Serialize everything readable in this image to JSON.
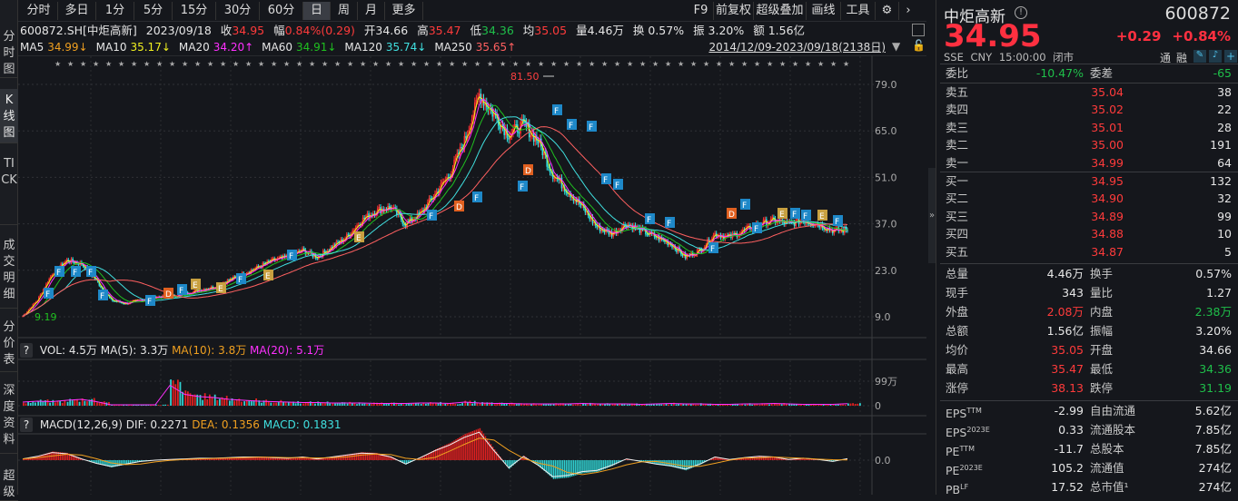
{
  "vertical_tabs": [
    {
      "label": "分时图"
    },
    {
      "label": "K线图",
      "active": true
    },
    {
      "label": "TICK"
    },
    {
      "label": "成交明细"
    },
    {
      "label": "分价表"
    },
    {
      "label": "深度资料"
    },
    {
      "label": "超级"
    }
  ],
  "toolbar": {
    "periods": [
      "分时",
      "多日",
      "1分",
      "5分",
      "15分",
      "30分",
      "60分",
      "日",
      "周",
      "月",
      "更多"
    ],
    "active": "日",
    "right": [
      "F9",
      "前复权",
      "超级叠加",
      "画线",
      "工具"
    ]
  },
  "info": {
    "code": "600872.SH[中炬高新]",
    "date": "2023/09/18",
    "close_label": "收",
    "close": "34.95",
    "chg_label": "幅",
    "chg": "0.84%(0.29)",
    "open_label": "开",
    "open": "34.66",
    "high_label": "高",
    "high": "35.47",
    "low_label": "低",
    "low": "34.36",
    "avg_label": "均",
    "avg": "35.05",
    "vol": "量4.46万",
    "turnover": "换 0.57%",
    "amp": "振 3.20%",
    "amount": "额 1.56亿"
  },
  "ma": [
    {
      "name": "MA5",
      "value": "34.99↓",
      "color": "#f0a020"
    },
    {
      "name": "MA10",
      "value": "35.17↓",
      "color": "#f0f020"
    },
    {
      "name": "MA20",
      "value": "34.20↑",
      "color": "#ff30ff"
    },
    {
      "name": "MA60",
      "value": "34.91↓",
      "color": "#20c020"
    },
    {
      "name": "MA120",
      "value": "35.74↓",
      "color": "#40e0e0"
    },
    {
      "name": "MA250",
      "value": "35.65↑",
      "color": "#ff6060"
    }
  ],
  "date_range": "2014/12/09-2023/09/18(2138日)",
  "volume_header": {
    "help": "?",
    "vol": "VOL: 4.5万",
    "ma5": "MA(5): 3.3万",
    "ma10": "MA(10): 3.8万",
    "ma20": "MA(20): 5.1万"
  },
  "macd_header": {
    "help": "?",
    "name": "MACD(12,26,9)",
    "dif": "DIF: 0.2271",
    "dea": "DEA: 0.1356",
    "macd": "MACD: 0.1831"
  },
  "chart_data": [
    {
      "type": "candlestick",
      "x_range": [
        "2014/12/09",
        "2023/09/18"
      ],
      "y_ticks": [
        "79.0",
        "65.0",
        "51.0",
        "37.0",
        "23.0",
        "9.0"
      ],
      "ylim": [
        4,
        88
      ],
      "annotations": [
        "81.50",
        "9.19"
      ],
      "close": [
        9.19,
        14,
        22,
        26,
        25,
        20,
        14,
        13,
        14,
        15,
        15,
        16,
        17,
        18,
        20,
        22,
        24,
        26,
        27,
        29,
        27,
        30,
        33,
        38,
        41,
        42,
        37,
        40,
        46,
        52,
        62,
        76,
        70,
        64,
        67,
        62,
        52,
        47,
        42,
        36,
        34,
        37,
        35,
        33,
        31,
        27,
        29,
        34,
        33,
        35,
        37,
        38,
        37,
        38,
        37,
        35,
        34.95
      ],
      "grid": true
    },
    {
      "type": "bar",
      "title": "VOL",
      "y_ticks": [
        "99万",
        "0"
      ],
      "values": [
        8,
        10,
        9,
        12,
        14,
        9,
        2,
        2,
        2,
        2,
        45,
        25,
        20,
        18,
        14,
        12,
        10,
        9,
        8,
        7,
        7,
        6,
        6,
        6,
        5,
        5,
        5,
        6,
        6,
        5,
        8,
        6,
        5,
        5,
        4,
        4,
        4,
        4,
        5,
        4,
        4,
        4,
        3,
        4,
        5,
        4,
        4,
        3,
        3,
        4,
        4,
        5,
        4,
        3,
        3,
        3,
        4.5
      ]
    },
    {
      "type": "line",
      "title": "MACD",
      "y_ticks": [
        "0.0"
      ],
      "values": [
        0.2,
        0.6,
        1.2,
        1.0,
        0.2,
        -0.5,
        -1.0,
        -0.6,
        -0.2,
        0,
        0.1,
        0.2,
        0.3,
        0.3,
        0.4,
        0.5,
        0.5,
        0.4,
        0.3,
        0.5,
        0.2,
        0.5,
        0.8,
        1.1,
        1.0,
        0.5,
        -0.6,
        0.4,
        1.5,
        2.4,
        3.6,
        4.4,
        1.5,
        -1.2,
        0.6,
        -0.8,
        -2.6,
        -2.4,
        -1.8,
        -1.6,
        -0.8,
        0.2,
        -0.2,
        -0.6,
        -0.9,
        -1.4,
        -0.6,
        0.5,
        0.1,
        0.4,
        0.6,
        0.5,
        0.1,
        0.3,
        0.1,
        -0.2,
        0.2271
      ]
    }
  ],
  "quote": {
    "name": "中炬高新",
    "code": "600872",
    "price": "34.95",
    "change": "+0.29",
    "pct": "+0.84%",
    "exchange": "SSE",
    "currency": "CNY",
    "time": "15:00:00",
    "status": "闭市",
    "tags": [
      "通",
      "融"
    ]
  },
  "order_book": {
    "ratio_label": "委比",
    "ratio": "-10.47%",
    "diff_label": "委差",
    "diff": "-65",
    "asks": [
      {
        "label": "卖五",
        "price": "35.04",
        "vol": "38"
      },
      {
        "label": "卖四",
        "price": "35.02",
        "vol": "22"
      },
      {
        "label": "卖三",
        "price": "35.01",
        "vol": "28"
      },
      {
        "label": "卖二",
        "price": "35.00",
        "vol": "191"
      },
      {
        "label": "卖一",
        "price": "34.99",
        "vol": "64"
      }
    ],
    "bids": [
      {
        "label": "买一",
        "price": "34.95",
        "vol": "132"
      },
      {
        "label": "买二",
        "price": "34.90",
        "vol": "32"
      },
      {
        "label": "买三",
        "price": "34.89",
        "vol": "99"
      },
      {
        "label": "买四",
        "price": "34.88",
        "vol": "10"
      },
      {
        "label": "买五",
        "price": "34.87",
        "vol": "5"
      }
    ]
  },
  "stats": [
    {
      "l": "总量",
      "v": "4.46万",
      "vc": "white",
      "l2": "换手",
      "v2": "0.57%",
      "v2c": "white"
    },
    {
      "l": "现手",
      "v": "343",
      "vc": "white",
      "l2": "量比",
      "v2": "1.27",
      "v2c": "white"
    },
    {
      "l": "外盘",
      "v": "2.08万",
      "vc": "red",
      "l2": "内盘",
      "v2": "2.38万",
      "v2c": "green"
    },
    {
      "l": "总额",
      "v": "1.56亿",
      "vc": "white",
      "l2": "振幅",
      "v2": "3.20%",
      "v2c": "white"
    },
    {
      "l": "均价",
      "v": "35.05",
      "vc": "red",
      "l2": "开盘",
      "v2": "34.66",
      "v2c": "white"
    },
    {
      "l": "最高",
      "v": "35.47",
      "vc": "red",
      "l2": "最低",
      "v2": "34.36",
      "v2c": "green"
    },
    {
      "l": "涨停",
      "v": "38.13",
      "vc": "red",
      "l2": "跌停",
      "v2": "31.19",
      "v2c": "green"
    }
  ],
  "fundamentals": [
    {
      "l": "EPS",
      "s": "TTM",
      "v": "-2.99",
      "l2": "自由流通",
      "v2": "5.62亿"
    },
    {
      "l": "EPS",
      "s": "2023E",
      "v": "0.33",
      "l2": "流通股本",
      "v2": "7.85亿"
    },
    {
      "l": "PE",
      "s": "TTM",
      "v": "-11.7",
      "l2": "总股本",
      "v2": "7.85亿"
    },
    {
      "l": "PE",
      "s": "2023E",
      "v": "105.2",
      "l2": "流通值",
      "v2": "274亿"
    },
    {
      "l": "PB",
      "s": "LF",
      "v": "17.52",
      "l2": "总市值¹",
      "v2": "274亿"
    }
  ]
}
